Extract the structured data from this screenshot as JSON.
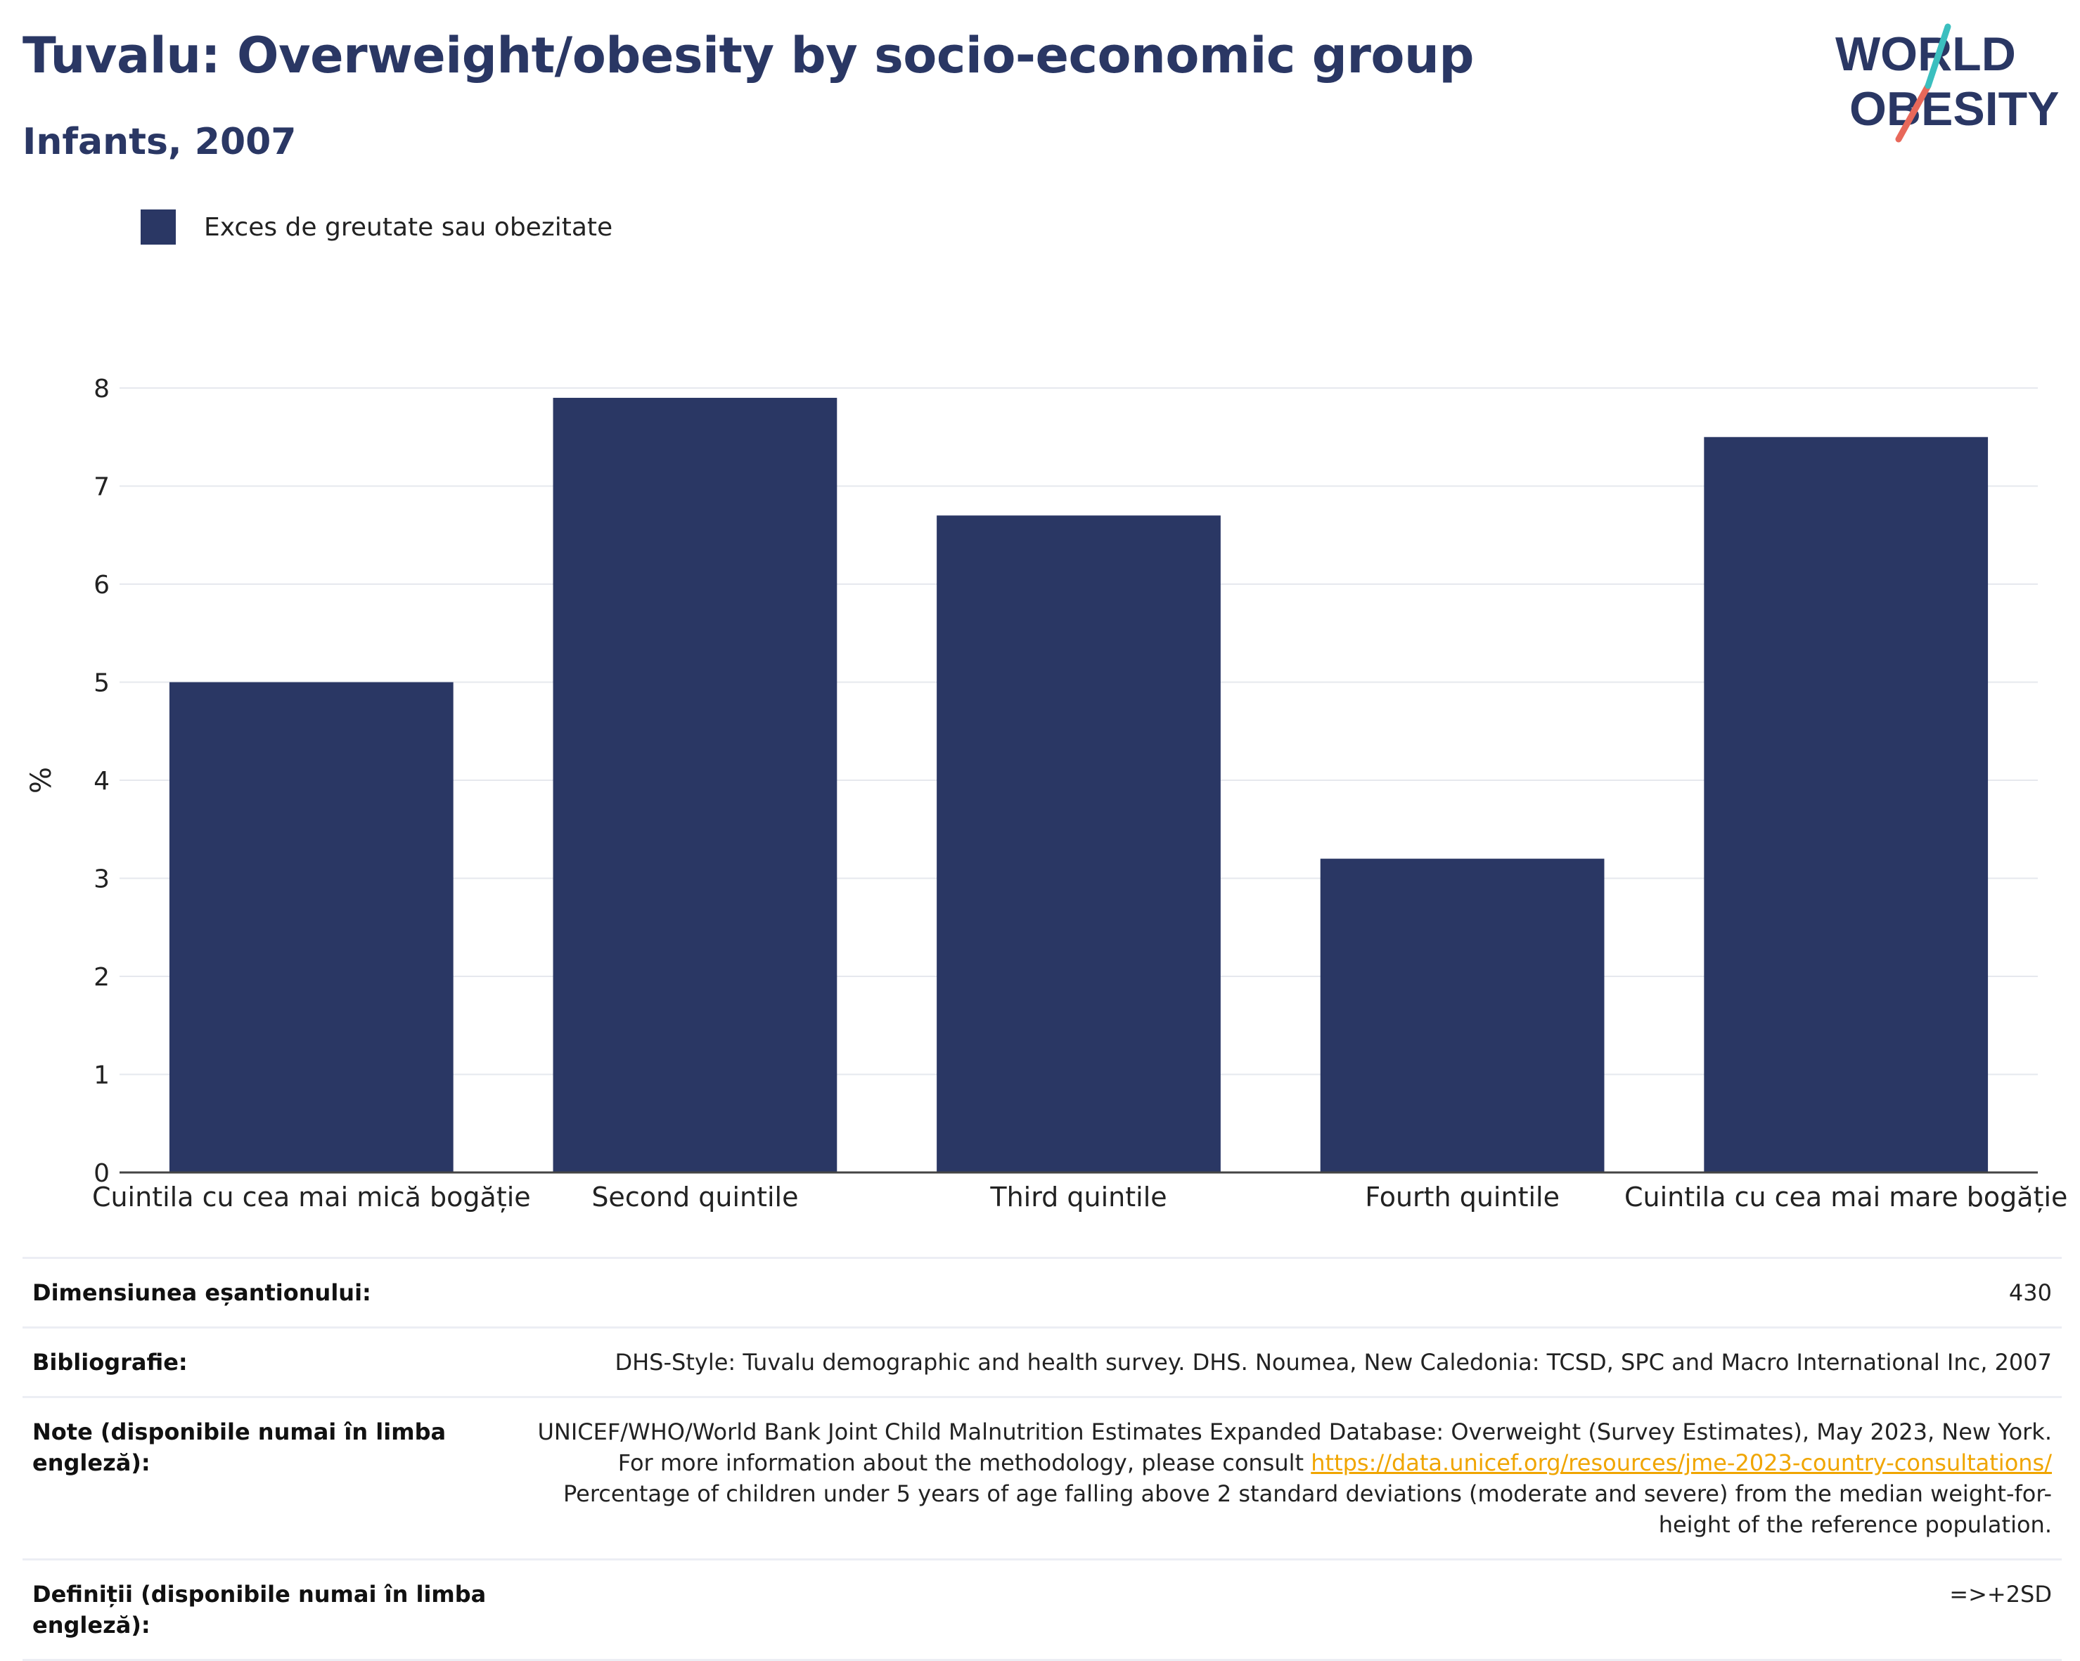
{
  "title": "Tuvalu: Overweight/obesity by socio-economic group",
  "subtitle": "Infants, 2007",
  "logo": {
    "line1": "WORLD",
    "line2": "OBESITY"
  },
  "legend": {
    "label": "Exces de greutate sau obezitate",
    "color": "#2a3764"
  },
  "chart_data": {
    "type": "bar",
    "categories": [
      "Cuintila cu cea mai mică bogăție",
      "Second quintile",
      "Third quintile",
      "Fourth quintile",
      "Cuintila cu cea mai mare bogăție"
    ],
    "series": [
      {
        "name": "Exces de greutate sau obezitate",
        "values": [
          5.0,
          7.9,
          6.7,
          3.2,
          7.5
        ]
      }
    ],
    "ylabel": "%",
    "xlabel": "",
    "ylim": [
      0,
      8
    ],
    "yticks": [
      0,
      1,
      2,
      3,
      4,
      5,
      6,
      7,
      8
    ],
    "grid": true,
    "bar_color": "#2a3764"
  },
  "meta": {
    "sample_label": "Dimensiunea eșantionului:",
    "sample_value": "430",
    "bib_label": "Bibliografie:",
    "bib_value": "DHS-Style: Tuvalu demographic and health survey. DHS. Noumea, New Caledonia: TCSD, SPC and Macro International Inc, 2007",
    "notes_label": "Note (disponibile numai în limba engleză):",
    "notes_text1": "UNICEF/WHO/World Bank Joint Child Malnutrition Estimates Expanded Database: Overweight (Survey Estimates), May 2023, New York. For more information about the methodology, please consult",
    "notes_link": "https://data.unicef.org/resources/jme-2023-country-consultations/",
    "notes_text2": "Percentage of children under 5 years of age falling above 2 standard deviations (moderate and severe) from the median weight-for-height of the reference population.",
    "def_label": "Definiții (disponibile numai în limba engleză):",
    "def_value": "=>+2SD"
  }
}
